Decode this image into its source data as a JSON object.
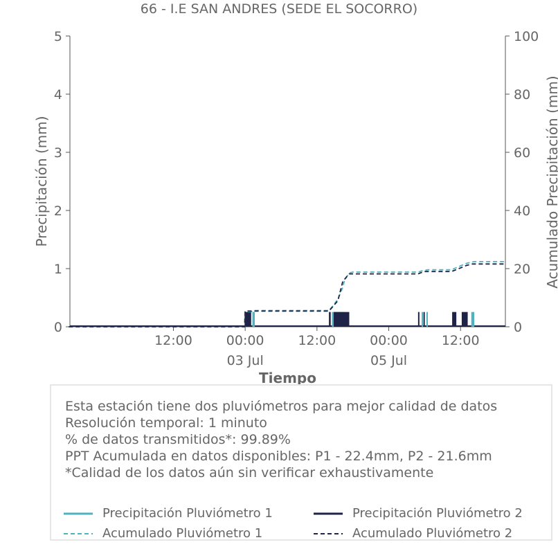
{
  "title": "66 - I.E SAN ANDRES (SEDE EL SOCORRO)",
  "info": {
    "lines": [
      "Esta estación tiene dos pluviómetros para mejor calidad de datos",
      "Resolución temporal: 1 minuto",
      "% de datos transmitidos*: 99.89%",
      "PPT Acumulada en datos disponibles: P1 - 22.4mm, P2 - 21.6mm",
      "*Calidad de los datos aún sin verificar exhaustivamente"
    ]
  },
  "legend": [
    {
      "label": "Precipitación Pluviómetro 1",
      "color": "#4fb3bf",
      "style": "solid"
    },
    {
      "label": "Precipitación Pluviómetro 2",
      "color": "#1f2347",
      "style": "solid"
    },
    {
      "label": "Acumulado Pluviómetro 1",
      "color": "#4fb3bf",
      "style": "dashed"
    },
    {
      "label": "Acumulado Pluviómetro 2",
      "color": "#1f2347",
      "style": "dashed"
    }
  ],
  "chart_data": {
    "type": "line",
    "title": "66 - I.E SAN ANDRES (SEDE EL SOCORRO)",
    "xlabel": "Tiempo",
    "ylabel": "Precipitación (mm)",
    "y2label": "Acumulado Precipitación (mm)",
    "x_unit": "hours since 2025-07-02 00:00 (axis shows dates)",
    "x_range_hours": [
      5.3,
      37.4
    ],
    "xticks": [
      {
        "hour": 12,
        "label": "12:00",
        "date": ""
      },
      {
        "hour": 24,
        "label": "00:00",
        "date": "03 Jul"
      },
      {
        "hour": 36,
        "label": "12:00",
        "date": ""
      },
      {
        "hour": 48,
        "label": "00:00",
        "date": "05 Jul"
      },
      {
        "hour": 60,
        "label": "12:00",
        "date": ""
      }
    ],
    "ylim": [
      0,
      5
    ],
    "yticks": [
      0,
      1,
      2,
      3,
      4,
      5
    ],
    "y2lim": [
      0,
      100
    ],
    "y2ticks": [
      0,
      20,
      40,
      60,
      80,
      100
    ],
    "grid": false,
    "colors": {
      "p1": "#4fb3bf",
      "p2": "#1f2347",
      "axis": "#555555"
    },
    "series": [
      {
        "name": "Precipitación Pluviómetro 1",
        "axis": "left",
        "style": "bars",
        "bursts": [
          [
            25.2,
            25.6,
            0.254
          ],
          [
            38.5,
            40.6,
            0.254
          ],
          [
            53.5,
            53.6,
            0.254
          ],
          [
            54.3,
            54.5,
            0.254
          ],
          [
            61.8,
            62.3,
            0.254
          ]
        ]
      },
      {
        "name": "Precipitación Pluviómetro 2",
        "axis": "left",
        "style": "bars",
        "bursts": [
          [
            23.9,
            25.0,
            0.254
          ],
          [
            38.0,
            38.3,
            0.254
          ],
          [
            38.8,
            41.4,
            0.254
          ],
          [
            52.9,
            53.1,
            0.254
          ],
          [
            53.8,
            54.0,
            0.254
          ],
          [
            58.6,
            59.3,
            0.254
          ],
          [
            60.2,
            61.2,
            0.254
          ]
        ]
      },
      {
        "name": "Acumulado Pluviómetro 1",
        "axis": "right",
        "style": "dashed",
        "points": [
          [
            -5.5,
            0
          ],
          [
            23.9,
            0
          ],
          [
            24.0,
            5.2
          ],
          [
            25.2,
            5.2
          ],
          [
            25.6,
            5.6
          ],
          [
            38.0,
            5.6
          ],
          [
            38.6,
            7.0
          ],
          [
            39.5,
            9.5
          ],
          [
            40.3,
            13.5
          ],
          [
            40.6,
            16.0
          ],
          [
            41.4,
            18.5
          ],
          [
            42.0,
            18.8
          ],
          [
            52.9,
            18.8
          ],
          [
            53.5,
            19.2
          ],
          [
            54.5,
            19.6
          ],
          [
            58.5,
            19.6
          ],
          [
            59.5,
            20.5
          ],
          [
            61.0,
            21.8
          ],
          [
            62.3,
            22.4
          ],
          [
            67.5,
            22.4
          ]
        ]
      },
      {
        "name": "Acumulado Pluviómetro 2",
        "axis": "right",
        "style": "dashed",
        "points": [
          [
            -5.5,
            0
          ],
          [
            23.9,
            0
          ],
          [
            24.0,
            5.4
          ],
          [
            38.0,
            5.4
          ],
          [
            38.6,
            6.8
          ],
          [
            39.5,
            9.0
          ],
          [
            40.3,
            15.5
          ],
          [
            41.0,
            17.3
          ],
          [
            41.4,
            18.2
          ],
          [
            52.9,
            18.2
          ],
          [
            53.9,
            19.0
          ],
          [
            58.5,
            19.0
          ],
          [
            59.5,
            19.8
          ],
          [
            61.0,
            21.1
          ],
          [
            62.0,
            21.6
          ],
          [
            67.5,
            21.6
          ]
        ]
      }
    ]
  }
}
